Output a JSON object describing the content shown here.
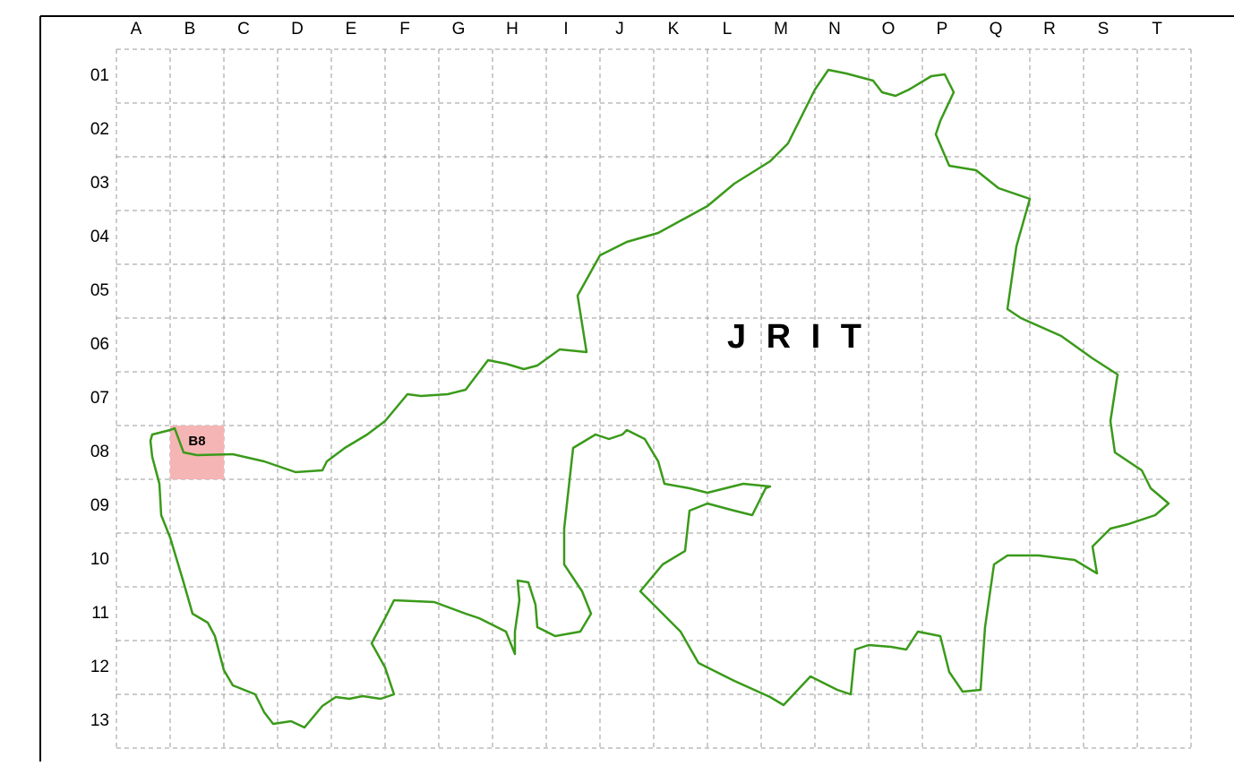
{
  "map": {
    "title": "J R I T",
    "columns": [
      "A",
      "B",
      "C",
      "D",
      "E",
      "F",
      "G",
      "H",
      "I",
      "J",
      "K",
      "L",
      "M",
      "N",
      "O",
      "P",
      "Q",
      "R",
      "S",
      "T"
    ],
    "rows": [
      "01",
      "02",
      "03",
      "04",
      "05",
      "06",
      "07",
      "08",
      "09",
      "10",
      "11",
      "12",
      "13"
    ],
    "highlight": {
      "label": "B8"
    }
  }
}
